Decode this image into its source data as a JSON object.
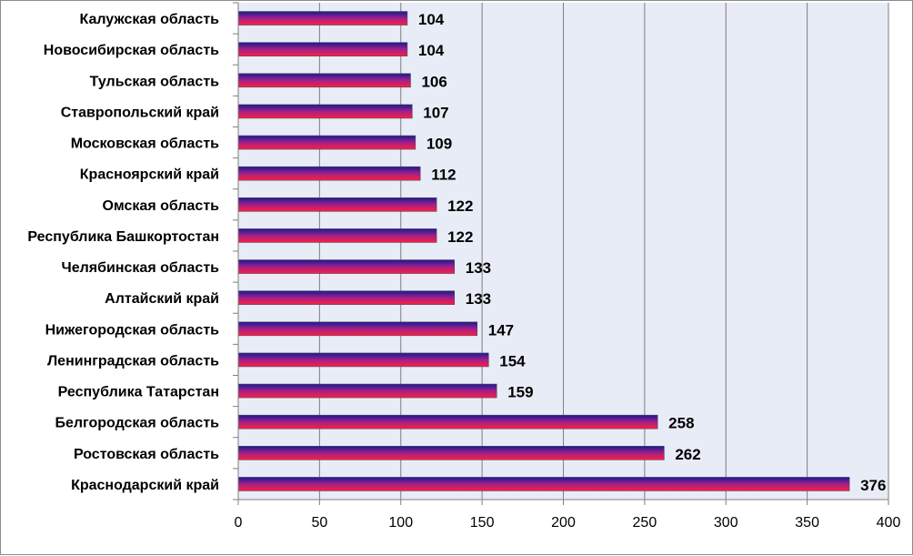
{
  "chart_data": {
    "type": "bar",
    "orientation": "horizontal",
    "categories": [
      "Калужская область",
      "Новосибирская область",
      "Тульская область",
      "Ставропольский край",
      "Московская область",
      "Красноярский край",
      "Омская область",
      "Республика Башкортостан",
      "Челябинская область",
      "Алтайский край",
      "Нижегородская область",
      "Ленинградская область",
      "Республика Татарстан",
      "Белгородская область",
      "Ростовская область",
      "Краснодарский край"
    ],
    "values": [
      104,
      104,
      106,
      107,
      109,
      112,
      122,
      122,
      133,
      133,
      147,
      154,
      159,
      258,
      262,
      376
    ],
    "xlim": [
      0,
      400
    ],
    "x_ticks": [
      0,
      50,
      100,
      150,
      200,
      250,
      300,
      350,
      400
    ],
    "grid": "vertical",
    "legend": "none",
    "data_labels": true
  },
  "colors": {
    "plot_background": "#e8ecf6",
    "gridline": "#7f7f7f",
    "bar_top": "#1a1a8c",
    "bar_mid": "#a0208c",
    "bar_bottom": "#ff1f3a",
    "bar_outline": "#4a4a6a"
  }
}
